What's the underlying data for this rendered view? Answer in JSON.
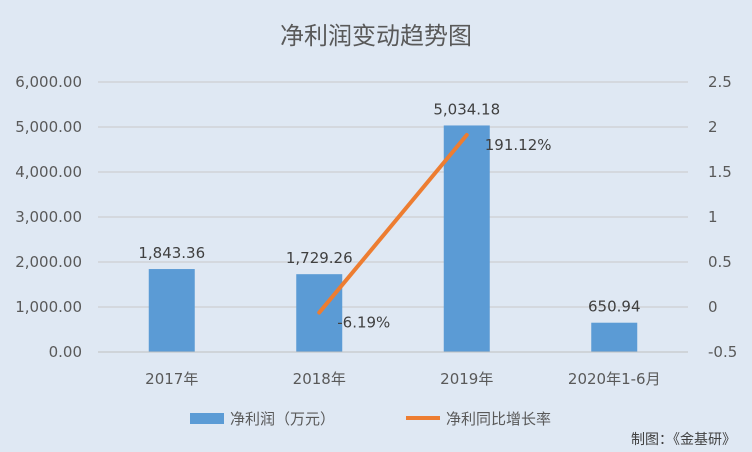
{
  "chart_data": {
    "type": "bar",
    "title": "净利润变动趋势图",
    "categories": [
      "2017年",
      "2018年",
      "2019年",
      "2020年1-6月"
    ],
    "series": [
      {
        "name": "净利润（万元）",
        "type": "bar",
        "axis": "left",
        "values": [
          1843.36,
          1729.26,
          5034.18,
          650.94
        ],
        "labels": [
          "1,843.36",
          "1,729.26",
          "5,034.18",
          "650.94"
        ],
        "color": "#5b9bd5"
      },
      {
        "name": "净利同比增长率",
        "type": "line",
        "axis": "right",
        "x": [
          "2018年",
          "2019年"
        ],
        "values": [
          -0.0619,
          1.9112
        ],
        "labels": [
          "-6.19%",
          "191.12%"
        ],
        "color": "#ed7d31"
      }
    ],
    "y_left": {
      "ylim": [
        0,
        6000
      ],
      "ticks": [
        0,
        1000,
        2000,
        3000,
        4000,
        5000,
        6000
      ],
      "tick_labels": [
        "0.00",
        "1,000.00",
        "2,000.00",
        "3,000.00",
        "4,000.00",
        "5,000.00",
        "6,000.00"
      ]
    },
    "y_right": {
      "ylim": [
        -0.5,
        2.5
      ],
      "ticks": [
        -0.5,
        0,
        0.5,
        1,
        1.5,
        2,
        2.5
      ],
      "tick_labels": [
        "-0.5",
        "0",
        "0.5",
        "1",
        "1.5",
        "2",
        "2.5"
      ]
    },
    "grid": true,
    "legend_position": "bottom",
    "credit": "制图：《金基研》"
  }
}
